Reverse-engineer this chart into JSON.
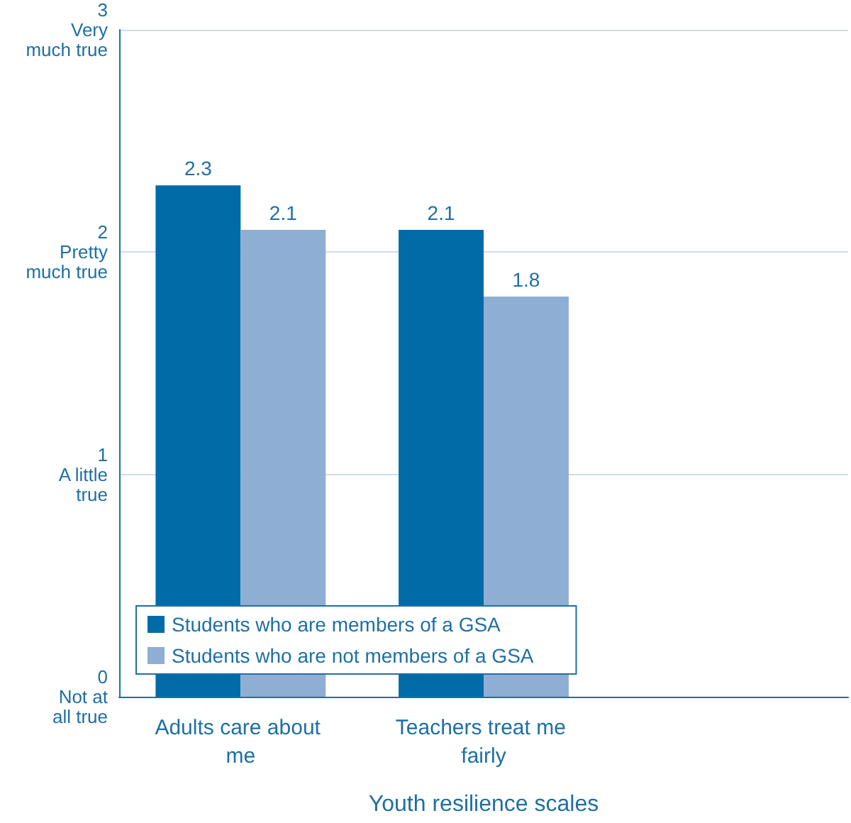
{
  "chart_data": {
    "type": "bar",
    "xlabel": "Youth resilience scales",
    "categories": [
      "Adults care about me",
      "Teachers treat me fairly",
      null
    ],
    "series": [
      {
        "name": "Students who are members of a GSA",
        "color": "#006ba6",
        "values": [
          2.3,
          2.1,
          null
        ]
      },
      {
        "name": "Students who are not members of a GSA",
        "color": "#8eaed3",
        "values": [
          2.1,
          1.8,
          null
        ]
      }
    ],
    "ylim": [
      0,
      3
    ],
    "yticks": [
      {
        "value": 0,
        "label": "0\nNot at\nall true"
      },
      {
        "value": 1,
        "label": "1\nA little\ntrue"
      },
      {
        "value": 2,
        "label": "2\nPretty\nmuch true"
      },
      {
        "value": 3,
        "label": "3\nVery\nmuch true"
      }
    ],
    "grid": "y",
    "legend": "bottom left",
    "data_labels": true
  }
}
